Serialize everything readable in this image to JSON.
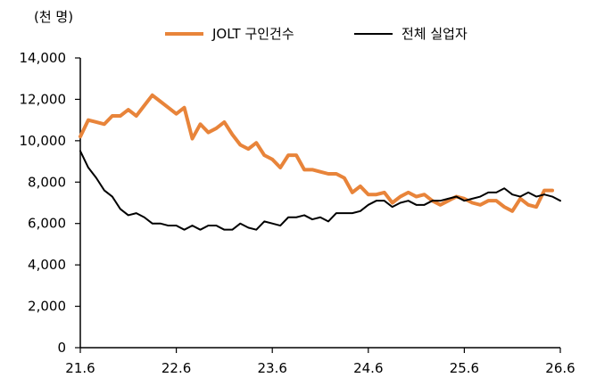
{
  "chart_data": {
    "type": "line",
    "unit_label": "(천 명)",
    "title": "",
    "xlabel": "",
    "ylabel": "",
    "ylim": [
      0,
      14000
    ],
    "y_ticks": [
      0,
      2000,
      4000,
      6000,
      8000,
      10000,
      12000,
      14000
    ],
    "y_tick_labels": [
      "0",
      "2,000",
      "4,000",
      "6,000",
      "8,000",
      "10,000",
      "12,000",
      "14,000"
    ],
    "x_tick_labels": [
      "21.6",
      "22.6",
      "23.6",
      "24.6",
      "25.6",
      "26.6"
    ],
    "x_start": "2021-06",
    "legend_position": "top-right",
    "grid": false,
    "series": [
      {
        "name": "JOLT 구인건수",
        "color": "#E8843A",
        "values": [
          10200,
          11000,
          10900,
          10800,
          11200,
          11200,
          11500,
          11200,
          11700,
          12200,
          11900,
          11600,
          11300,
          11600,
          10100,
          10800,
          10400,
          10600,
          10900,
          10300,
          9800,
          9600,
          9900,
          9300,
          9100,
          8700,
          9300,
          9300,
          8600,
          8600,
          8500,
          8400,
          8400,
          8200,
          7500,
          7800,
          7400,
          7400,
          7500,
          7000,
          7300,
          7500,
          7300,
          7400,
          7100,
          6900,
          7100,
          7300,
          7200,
          7000,
          6900,
          7100,
          7100,
          6800,
          6600,
          7200,
          6900,
          6800,
          7600,
          7600
        ]
      },
      {
        "name": "전체 실업자",
        "color": "#000000",
        "values": [
          9500,
          8700,
          8200,
          7600,
          7300,
          6700,
          6400,
          6500,
          6300,
          6000,
          6000,
          5900,
          5900,
          5700,
          5900,
          5700,
          5900,
          5900,
          5700,
          5700,
          6000,
          5800,
          5700,
          6100,
          6000,
          5900,
          6300,
          6300,
          6400,
          6200,
          6300,
          6100,
          6500,
          6500,
          6500,
          6600,
          6900,
          7100,
          7100,
          6800,
          7000,
          7100,
          6900,
          6900,
          7100,
          7100,
          7200,
          7300,
          7100,
          7200,
          7300,
          7500,
          7500,
          7700,
          7400,
          7300,
          7500,
          7300,
          7400,
          7300,
          7100
        ]
      }
    ]
  }
}
